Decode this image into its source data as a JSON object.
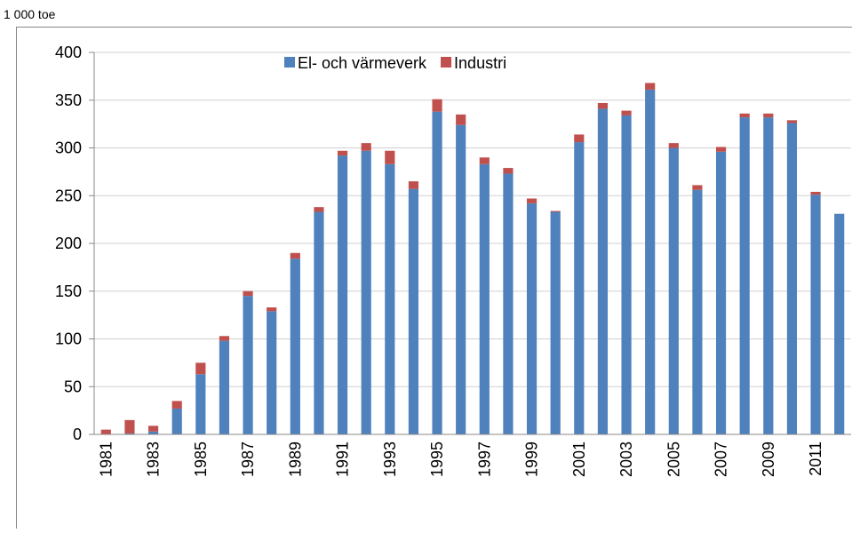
{
  "chart_data": {
    "type": "stacked_bar",
    "unit_label": "1 000 toe",
    "categories": [
      "1981",
      null,
      "1983",
      null,
      "1985",
      null,
      "1987",
      null,
      "1989",
      null,
      "1991",
      null,
      "1993",
      null,
      "1995",
      null,
      "1997",
      null,
      "1999",
      null,
      "2001",
      null,
      "2003",
      null,
      "2005",
      null,
      "2007",
      null,
      "2009",
      null,
      "2011",
      null
    ],
    "series": [
      {
        "name": "El- och värmeverk",
        "color": "#4f81bd",
        "values": [
          0,
          1,
          3,
          27,
          63,
          98,
          145,
          129,
          184,
          233,
          292,
          297,
          283,
          257,
          338,
          324,
          283,
          273,
          242,
          233,
          306,
          341,
          334,
          361,
          300,
          256,
          296,
          332,
          332,
          326,
          251,
          231
        ]
      },
      {
        "name": "Industri",
        "color": "#c0504d",
        "values": [
          5,
          14,
          6,
          8,
          12,
          5,
          5,
          4,
          6,
          5,
          5,
          8,
          14,
          8,
          13,
          11,
          7,
          6,
          5,
          1,
          8,
          6,
          5,
          7,
          5,
          5,
          5,
          4,
          4,
          3,
          3,
          0
        ]
      }
    ],
    "ylim": [
      0,
      400
    ],
    "yticks": [
      0,
      50,
      100,
      150,
      200,
      250,
      300,
      350,
      400
    ],
    "grid": true
  }
}
